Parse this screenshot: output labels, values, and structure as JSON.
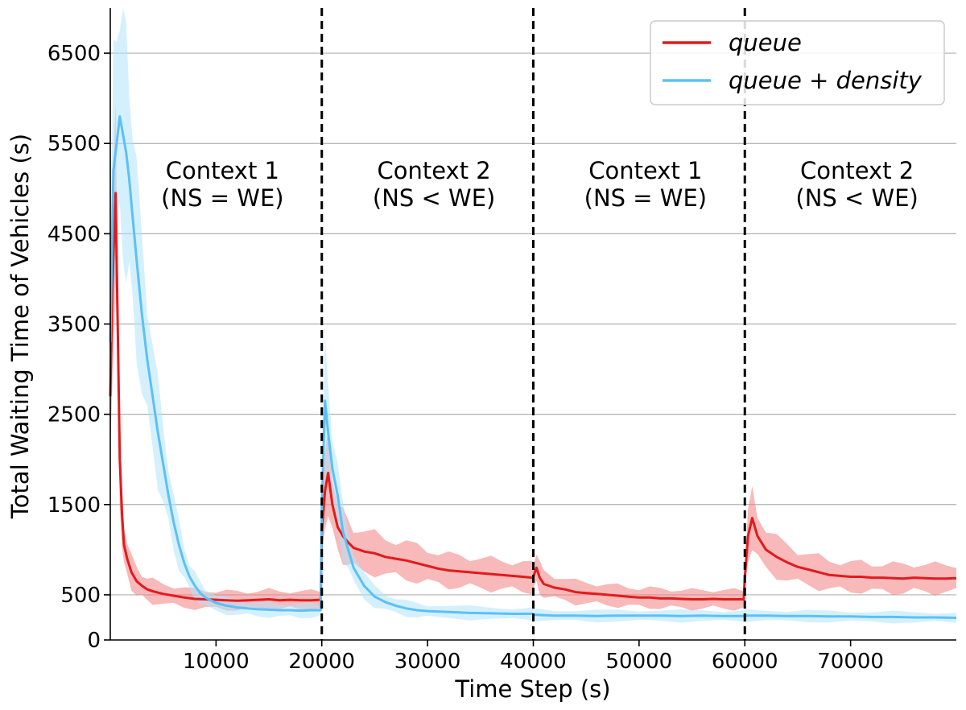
{
  "chart_data": {
    "type": "line",
    "xlabel": "Time Step (s)",
    "ylabel": "Total Waiting Time of Vehicles (s)",
    "xlim": [
      0,
      80000
    ],
    "ylim": [
      0,
      7000
    ],
    "x_ticks": [
      10000,
      20000,
      30000,
      40000,
      50000,
      60000,
      70000
    ],
    "y_ticks": [
      0,
      500,
      1500,
      2500,
      3500,
      4500,
      5500,
      6500
    ],
    "grid": "horizontal",
    "legend_position": "top-right",
    "context_boundaries": [
      20000,
      40000,
      60000
    ],
    "annotations": [
      {
        "x": 10000,
        "line1": "Context 1",
        "line2": "(NS = WE)"
      },
      {
        "x": 30000,
        "line1": "Context 2",
        "line2": "(NS < WE)"
      },
      {
        "x": 50000,
        "line1": "Context 1",
        "line2": "(NS = WE)"
      },
      {
        "x": 70000,
        "line1": "Context 2",
        "line2": "(NS < WE)"
      }
    ],
    "series": [
      {
        "name": "queue",
        "color": "#e31a1c",
        "band_color": "#f08080",
        "points": [
          [
            0,
            2700
          ],
          [
            200,
            3900
          ],
          [
            500,
            4950
          ],
          [
            700,
            3500
          ],
          [
            900,
            2000
          ],
          [
            1100,
            1400
          ],
          [
            1300,
            1050
          ],
          [
            1600,
            900
          ],
          [
            2000,
            750
          ],
          [
            2500,
            650
          ],
          [
            3000,
            600
          ],
          [
            3500,
            560
          ],
          [
            4000,
            540
          ],
          [
            5000,
            510
          ],
          [
            6000,
            490
          ],
          [
            7000,
            470
          ],
          [
            8000,
            455
          ],
          [
            9000,
            450
          ],
          [
            10000,
            445
          ],
          [
            11000,
            440
          ],
          [
            12000,
            435
          ],
          [
            13000,
            440
          ],
          [
            14000,
            445
          ],
          [
            15000,
            450
          ],
          [
            16000,
            440
          ],
          [
            17000,
            445
          ],
          [
            18000,
            440
          ],
          [
            19000,
            440
          ],
          [
            19900,
            445
          ],
          [
            20000,
            1200
          ],
          [
            20300,
            1650
          ],
          [
            20600,
            1850
          ],
          [
            21000,
            1500
          ],
          [
            21500,
            1250
          ],
          [
            22000,
            1150
          ],
          [
            22500,
            1080
          ],
          [
            23000,
            1020
          ],
          [
            24000,
            980
          ],
          [
            25000,
            960
          ],
          [
            26000,
            920
          ],
          [
            27000,
            900
          ],
          [
            28000,
            880
          ],
          [
            29000,
            850
          ],
          [
            30000,
            820
          ],
          [
            31000,
            790
          ],
          [
            32000,
            770
          ],
          [
            33000,
            760
          ],
          [
            34000,
            750
          ],
          [
            35000,
            740
          ],
          [
            36000,
            730
          ],
          [
            37000,
            720
          ],
          [
            38000,
            710
          ],
          [
            39000,
            700
          ],
          [
            39900,
            690
          ],
          [
            40000,
            700
          ],
          [
            40300,
            800
          ],
          [
            40600,
            690
          ],
          [
            41000,
            620
          ],
          [
            42000,
            580
          ],
          [
            43000,
            560
          ],
          [
            44000,
            530
          ],
          [
            45000,
            520
          ],
          [
            46000,
            510
          ],
          [
            47000,
            500
          ],
          [
            48000,
            490
          ],
          [
            49000,
            480
          ],
          [
            50000,
            470
          ],
          [
            51000,
            470
          ],
          [
            52000,
            460
          ],
          [
            53000,
            460
          ],
          [
            54000,
            455
          ],
          [
            55000,
            450
          ],
          [
            56000,
            450
          ],
          [
            57000,
            455
          ],
          [
            58000,
            450
          ],
          [
            59000,
            450
          ],
          [
            59900,
            450
          ],
          [
            60000,
            700
          ],
          [
            60300,
            1150
          ],
          [
            60700,
            1350
          ],
          [
            61200,
            1150
          ],
          [
            62000,
            1000
          ],
          [
            63000,
            920
          ],
          [
            64000,
            860
          ],
          [
            65000,
            810
          ],
          [
            66000,
            780
          ],
          [
            67000,
            750
          ],
          [
            68000,
            720
          ],
          [
            69000,
            710
          ],
          [
            70000,
            700
          ],
          [
            71000,
            700
          ],
          [
            72000,
            690
          ],
          [
            73000,
            690
          ],
          [
            74000,
            685
          ],
          [
            75000,
            680
          ],
          [
            76000,
            690
          ],
          [
            77000,
            685
          ],
          [
            78000,
            680
          ],
          [
            79000,
            680
          ],
          [
            80000,
            685
          ]
        ]
      },
      {
        "name": "queue + density",
        "color": "#5bc0f8",
        "band_color": "#b3e3fb",
        "points": [
          [
            0,
            3300
          ],
          [
            300,
            5200
          ],
          [
            600,
            5500
          ],
          [
            900,
            5800
          ],
          [
            1200,
            5600
          ],
          [
            1500,
            5400
          ],
          [
            1800,
            5100
          ],
          [
            2100,
            4700
          ],
          [
            2500,
            4200
          ],
          [
            3000,
            3600
          ],
          [
            3500,
            3100
          ],
          [
            4000,
            2700
          ],
          [
            4500,
            2300
          ],
          [
            5000,
            1950
          ],
          [
            5500,
            1600
          ],
          [
            6000,
            1300
          ],
          [
            6500,
            1050
          ],
          [
            7000,
            850
          ],
          [
            7500,
            700
          ],
          [
            8000,
            600
          ],
          [
            8500,
            520
          ],
          [
            9000,
            470
          ],
          [
            10000,
            410
          ],
          [
            11000,
            380
          ],
          [
            12000,
            360
          ],
          [
            13000,
            350
          ],
          [
            14000,
            340
          ],
          [
            15000,
            335
          ],
          [
            16000,
            330
          ],
          [
            17000,
            330
          ],
          [
            18000,
            325
          ],
          [
            19000,
            330
          ],
          [
            19900,
            330
          ],
          [
            20000,
            1500
          ],
          [
            20300,
            2650
          ],
          [
            20600,
            2300
          ],
          [
            21000,
            1900
          ],
          [
            21500,
            1600
          ],
          [
            22000,
            1200
          ],
          [
            22500,
            1000
          ],
          [
            23000,
            800
          ],
          [
            24000,
            600
          ],
          [
            25000,
            480
          ],
          [
            26000,
            420
          ],
          [
            27000,
            380
          ],
          [
            28000,
            350
          ],
          [
            29000,
            330
          ],
          [
            30000,
            320
          ],
          [
            32000,
            310
          ],
          [
            34000,
            300
          ],
          [
            36000,
            295
          ],
          [
            38000,
            290
          ],
          [
            39900,
            290
          ],
          [
            40000,
            280
          ],
          [
            42000,
            270
          ],
          [
            44000,
            270
          ],
          [
            46000,
            265
          ],
          [
            48000,
            270
          ],
          [
            50000,
            270
          ],
          [
            52000,
            270
          ],
          [
            54000,
            265
          ],
          [
            56000,
            270
          ],
          [
            58000,
            265
          ],
          [
            59900,
            265
          ],
          [
            60000,
            270
          ],
          [
            62000,
            270
          ],
          [
            64000,
            265
          ],
          [
            66000,
            265
          ],
          [
            68000,
            260
          ],
          [
            70000,
            260
          ],
          [
            72000,
            255
          ],
          [
            74000,
            255
          ],
          [
            76000,
            250
          ],
          [
            78000,
            250
          ],
          [
            80000,
            245
          ]
        ]
      }
    ]
  }
}
